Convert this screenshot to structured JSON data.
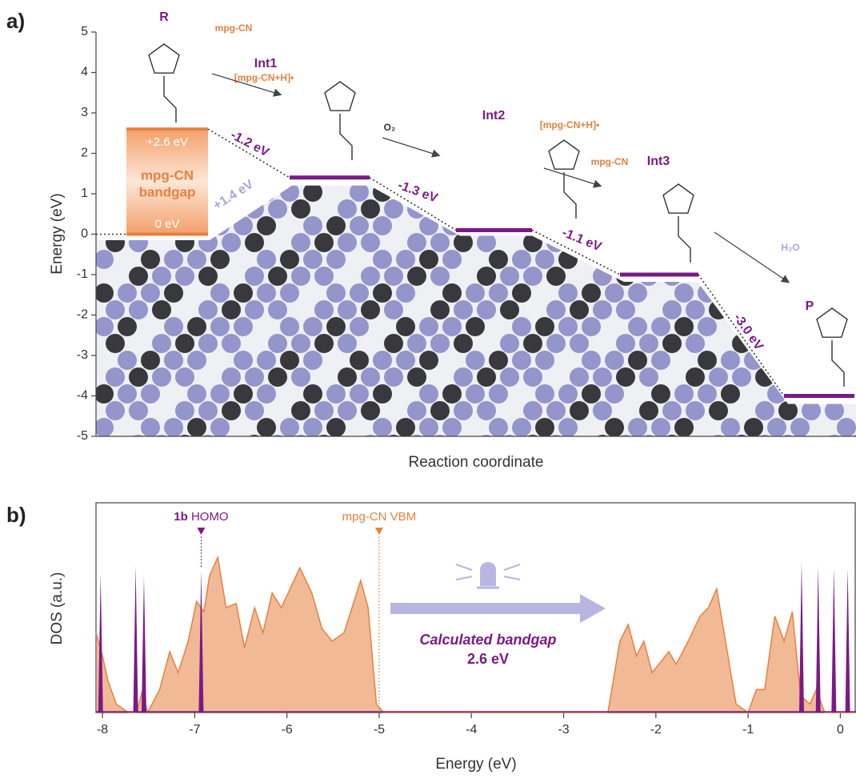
{
  "chart_data": [
    {
      "type": "energy-diagram",
      "panel_label": "a)",
      "ylabel": "Energy (eV)",
      "xlabel": "Reaction coordinate",
      "ylim": [
        -5,
        5
      ],
      "yticks": [
        -5,
        -4,
        -3,
        -2,
        -1,
        0,
        1,
        2,
        3,
        4,
        5
      ],
      "bandgap": {
        "top": 2.6,
        "bottom": 0,
        "top_label": "+2.6 eV",
        "bottom_label": "0 eV",
        "name": [
          "mpg-CN",
          "bandgap"
        ],
        "color": "#e8803f"
      },
      "species": [
        "R",
        "Int1",
        "Int2",
        "Int3",
        "P"
      ],
      "levels": [
        1.4,
        0.1,
        -1.0,
        -4.0
      ],
      "level_color": "#7b1a86",
      "steps": [
        "-1.2 eV",
        "+1.4 eV",
        "-1.3 eV",
        "-1.1 eV",
        "-3.0 eV"
      ],
      "reagents": [
        "mpg-CN",
        "[mpg-CN+H]•",
        "O₂",
        "[mpg-CN+H]•",
        "mpg-CN",
        "H₂O"
      ]
    },
    {
      "type": "dos",
      "panel_label": "b)",
      "ylabel": "DOS (a.u.)",
      "xlabel": "Energy (eV)",
      "xlim": [
        -8.07,
        0.17
      ],
      "xticks": [
        -8,
        -7,
        -6,
        -5,
        -4,
        -3,
        -2,
        -1,
        0
      ],
      "ylim": [
        0,
        1
      ],
      "series": [
        {
          "color": "#e8803f",
          "style": "area",
          "x": [
            -8.07,
            -8.0,
            -7.94,
            -7.85,
            -7.72,
            -7.63,
            -7.57,
            -7.51,
            -7.38,
            -7.27,
            -7.18,
            -7.07,
            -6.98,
            -6.9,
            -6.84,
            -6.75,
            -6.66,
            -6.55,
            -6.46,
            -6.35,
            -6.26,
            -6.16,
            -6.06,
            -5.86,
            -5.73,
            -5.62,
            -5.51,
            -5.38,
            -5.2,
            -5.12,
            -5.03,
            -4.95,
            -2.52,
            -2.39,
            -2.3,
            -2.21,
            -2.13,
            -2.04,
            -1.95,
            -1.86,
            -1.78,
            -1.65,
            -1.52,
            -1.43,
            -1.34,
            -1.26,
            -1.13,
            -1.0,
            -0.91,
            -0.82,
            -0.71,
            -0.61,
            -0.52,
            -0.43,
            -0.33,
            -0.26,
            -0.17,
            0.17
          ],
          "values": [
            0.38,
            0.27,
            0.15,
            0.04,
            0.0,
            0.0,
            0.1,
            0.0,
            0.11,
            0.29,
            0.19,
            0.34,
            0.53,
            0.48,
            0.65,
            0.74,
            0.5,
            0.52,
            0.31,
            0.5,
            0.38,
            0.57,
            0.5,
            0.69,
            0.57,
            0.4,
            0.34,
            0.38,
            0.63,
            0.5,
            0.04,
            0.0,
            0.0,
            0.34,
            0.42,
            0.27,
            0.34,
            0.19,
            0.24,
            0.29,
            0.23,
            0.34,
            0.46,
            0.5,
            0.59,
            0.38,
            0.04,
            0.0,
            0.11,
            0.11,
            0.46,
            0.34,
            0.48,
            0.08,
            0.04,
            0.11,
            0.0,
            0.0
          ]
        },
        {
          "color": "#7b1a86",
          "style": "spikes",
          "x": [
            -8.02,
            -7.64,
            -7.55,
            -6.93,
            -0.42,
            -0.24,
            -0.07,
            0.08
          ],
          "values": [
            0.66,
            0.7,
            0.65,
            0.68,
            0.72,
            0.7,
            0.69,
            0.69
          ]
        }
      ],
      "markers": [
        {
          "x": -6.93,
          "label_bold": "1b",
          "label": "HOMO",
          "color": "#7b1a86"
        },
        {
          "x": -5.0,
          "label": "mpg-CN VBM",
          "color": "#e8803f"
        }
      ],
      "annotation": [
        "Calculated bandgap",
        "2.6 eV"
      ]
    }
  ]
}
